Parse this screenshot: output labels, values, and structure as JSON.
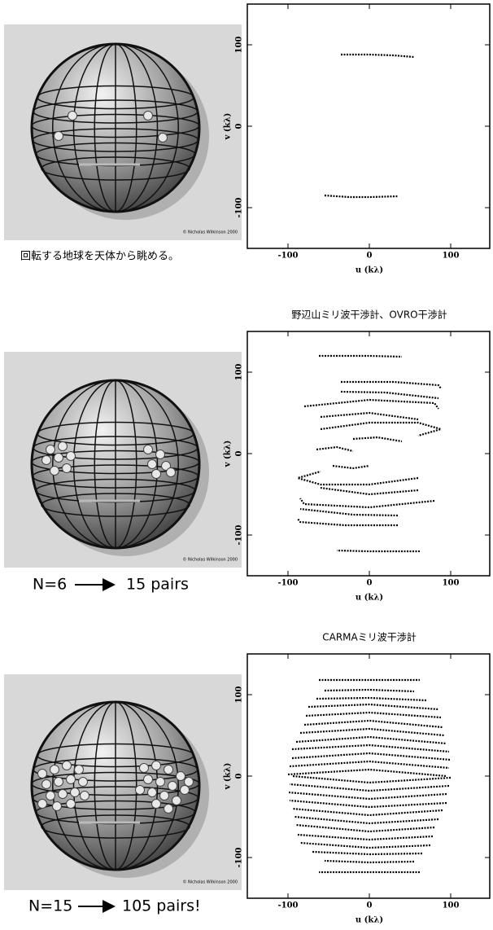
{
  "chart_data": [
    {
      "type": "line",
      "color": "#000000",
      "xlabel": "u (kλ)",
      "ylabel": "v (kλ)",
      "xlim": [
        -150,
        150
      ],
      "ylim": [
        -150,
        150
      ],
      "xticks": [
        -100,
        0,
        100
      ],
      "yticks": [
        -100,
        0,
        100
      ],
      "series": [
        {
          "x": [
            -35,
            0,
            30,
            55
          ],
          "values": [
            88,
            88,
            87,
            85
          ]
        },
        {
          "x": [
            -55,
            -25,
            0,
            35
          ],
          "values": [
            -85,
            -87,
            -87,
            -86
          ]
        }
      ]
    },
    {
      "type": "line",
      "title": "野辺山ミリ波干渉計、OVRO干渉計",
      "color": "#000000",
      "xlabel": "u (kλ)",
      "ylabel": "v (kλ)",
      "xlim": [
        -150,
        150
      ],
      "ylim": [
        -150,
        150
      ],
      "xticks": [
        -100,
        0,
        100
      ],
      "yticks": [
        -100,
        0,
        100
      ],
      "series": [
        {
          "x": [
            -62,
            0,
            40
          ],
          "values": [
            120,
            120,
            119
          ]
        },
        {
          "x": [
            -35,
            30,
            85,
            88
          ],
          "values": [
            88,
            88,
            84,
            80
          ]
        },
        {
          "x": [
            -35,
            20,
            85
          ],
          "values": [
            76,
            75,
            68
          ]
        },
        {
          "x": [
            -80,
            0,
            80,
            85
          ],
          "values": [
            58,
            66,
            62,
            55
          ]
        },
        {
          "x": [
            -60,
            0,
            60
          ],
          "values": [
            45,
            50,
            42
          ]
        },
        {
          "x": [
            -60,
            0,
            60,
            88,
            60
          ],
          "values": [
            30,
            38,
            38,
            30,
            22
          ]
        },
        {
          "x": [
            -65,
            -40,
            -20
          ],
          "values": [
            5,
            8,
            3
          ]
        },
        {
          "x": [
            -20,
            10,
            40
          ],
          "values": [
            18,
            20,
            15
          ]
        },
        {
          "x": [
            -45,
            -20,
            0
          ],
          "values": [
            -15,
            -18,
            -15
          ]
        },
        {
          "x": [
            62,
            0,
            -40
          ],
          "values": [
            -120,
            -120,
            -119
          ]
        },
        {
          "x": [
            35,
            -30,
            -85,
            -88
          ],
          "values": [
            -88,
            -88,
            -84,
            -80
          ]
        },
        {
          "x": [
            35,
            -20,
            -85
          ],
          "values": [
            -76,
            -75,
            -68
          ]
        },
        {
          "x": [
            80,
            0,
            -80,
            -85
          ],
          "values": [
            -58,
            -66,
            -62,
            -55
          ]
        },
        {
          "x": [
            60,
            0,
            -60
          ],
          "values": [
            -45,
            -50,
            -42
          ]
        },
        {
          "x": [
            60,
            0,
            -60,
            -88,
            -60
          ],
          "values": [
            -30,
            -38,
            -38,
            -30,
            -22
          ]
        }
      ]
    },
    {
      "type": "line",
      "title": "CARMAミリ波干渉計",
      "color": "#000000",
      "xlabel": "u (kλ)",
      "ylabel": "v (kλ)",
      "xlim": [
        -150,
        150
      ],
      "ylim": [
        -150,
        150
      ],
      "xticks": [
        -100,
        0,
        100
      ],
      "yticks": [
        -100,
        0,
        100
      ],
      "series": [
        {
          "x": [
            -62,
            0,
            62
          ],
          "values": [
            118,
            118,
            118
          ]
        },
        {
          "x": [
            -55,
            0,
            55
          ],
          "values": [
            105,
            106,
            104
          ]
        },
        {
          "x": [
            -65,
            0,
            70
          ],
          "values": [
            95,
            96,
            93
          ]
        },
        {
          "x": [
            -75,
            0,
            85
          ],
          "values": [
            85,
            88,
            82
          ]
        },
        {
          "x": [
            -78,
            0,
            88
          ],
          "values": [
            74,
            78,
            72
          ]
        },
        {
          "x": [
            -80,
            0,
            90
          ],
          "values": [
            63,
            68,
            60
          ]
        },
        {
          "x": [
            -85,
            0,
            92
          ],
          "values": [
            53,
            58,
            50
          ]
        },
        {
          "x": [
            -90,
            0,
            95
          ],
          "values": [
            42,
            48,
            40
          ]
        },
        {
          "x": [
            -95,
            0,
            98
          ],
          "values": [
            33,
            38,
            30
          ]
        },
        {
          "x": [
            -95,
            0,
            100
          ],
          "values": [
            22,
            28,
            20
          ]
        },
        {
          "x": [
            -98,
            0,
            98
          ],
          "values": [
            12,
            18,
            10
          ]
        },
        {
          "x": [
            -100,
            0,
            95
          ],
          "values": [
            2,
            8,
            0
          ]
        },
        {
          "x": [
            62,
            0,
            -62
          ],
          "values": [
            -118,
            -118,
            -118
          ]
        },
        {
          "x": [
            55,
            0,
            -55
          ],
          "values": [
            -105,
            -106,
            -104
          ]
        },
        {
          "x": [
            65,
            0,
            -70
          ],
          "values": [
            -95,
            -96,
            -93
          ]
        },
        {
          "x": [
            75,
            0,
            -85
          ],
          "values": [
            -85,
            -88,
            -82
          ]
        },
        {
          "x": [
            78,
            0,
            -88
          ],
          "values": [
            -74,
            -78,
            -72
          ]
        },
        {
          "x": [
            80,
            0,
            -90
          ],
          "values": [
            -63,
            -68,
            -60
          ]
        },
        {
          "x": [
            85,
            0,
            -92
          ],
          "values": [
            -53,
            -58,
            -50
          ]
        },
        {
          "x": [
            90,
            0,
            -95
          ],
          "values": [
            -42,
            -48,
            -40
          ]
        },
        {
          "x": [
            95,
            0,
            -98
          ],
          "values": [
            -33,
            -38,
            -30
          ]
        },
        {
          "x": [
            95,
            0,
            -100
          ],
          "values": [
            -22,
            -28,
            -20
          ]
        },
        {
          "x": [
            98,
            0,
            -98
          ],
          "values": [
            -12,
            -18,
            -10
          ]
        },
        {
          "x": [
            100,
            0,
            -95
          ],
          "values": [
            -2,
            -8,
            0
          ]
        }
      ]
    }
  ],
  "panels": [
    {
      "caption": "回転する地球を天体から眺める。",
      "credit": "© Nicholas Wilkinson 2000"
    },
    {
      "n": "N=6",
      "pairs": "15 pairs",
      "credit": "© Nicholas Wilkinson 2000"
    },
    {
      "n": "N=15",
      "pairs": "105 pairs!",
      "credit": "© Nicholas Wilkinson 2000"
    }
  ]
}
